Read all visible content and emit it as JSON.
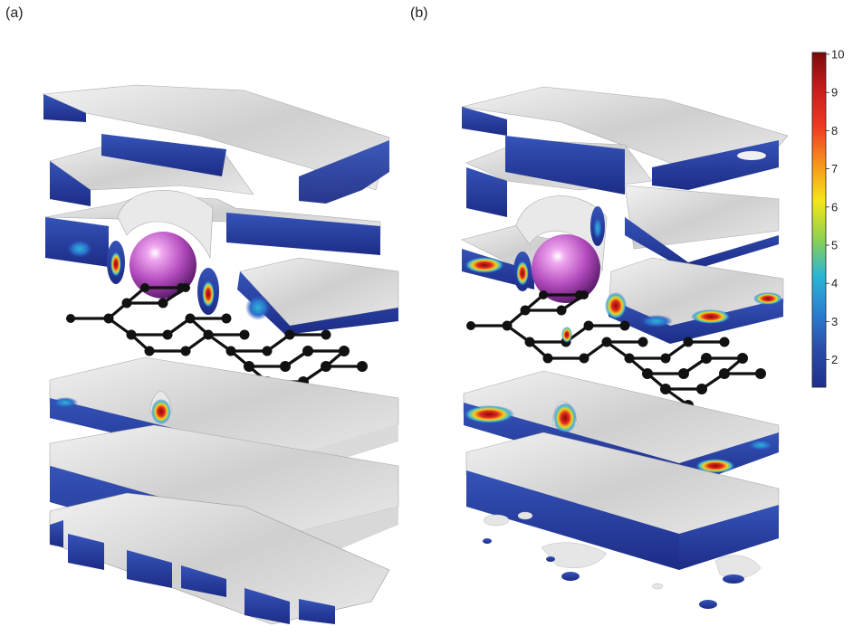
{
  "panels": [
    {
      "label": "(a)"
    },
    {
      "label": "(b)"
    }
  ],
  "colorbar": {
    "ticks": [
      "10",
      "9",
      "8",
      "7",
      "6",
      "5",
      "4",
      "3",
      "2"
    ],
    "colors": [
      "#7a0a0a",
      "#c81e1e",
      "#ee3b22",
      "#f7941d",
      "#f5e51b",
      "#8fd14f",
      "#2ab5d6",
      "#2a7fd0",
      "#2a4ba8",
      "#1e2f8c"
    ]
  }
}
